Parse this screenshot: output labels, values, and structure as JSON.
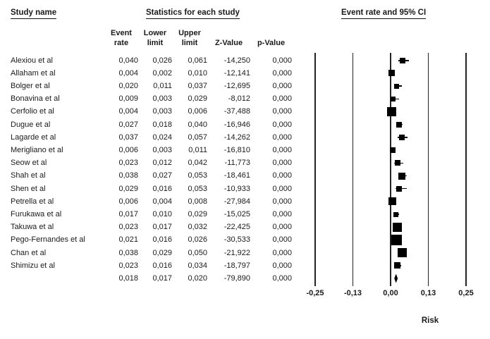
{
  "header": {
    "study_name": "Study name",
    "statistics": "Statistics for each study",
    "ci_title": "Event rate and 95% CI"
  },
  "columns": {
    "event_rate_line1": "Event",
    "event_rate_line2": "rate",
    "lower_line1": "Lower",
    "lower_line2": "limit",
    "upper_line1": "Upper",
    "upper_line2": "limit",
    "z_value": "Z-Value",
    "p_value": "p-Value"
  },
  "colors": {
    "text": "#1a1a1a",
    "marker": "#000000",
    "gridline": "#222222",
    "background": "#ffffff"
  },
  "chart_data": {
    "type": "forest",
    "title": "Event rate and 95% CI",
    "xlabel": "Risk",
    "decimal_separator": ",",
    "axis": {
      "xlim": [
        -0.25,
        0.25
      ],
      "tick_labels": [
        "-0,25",
        "-0,13",
        "0,00",
        "0,13",
        "0,25"
      ],
      "tick_values": [
        -0.25,
        -0.125,
        0,
        0.125,
        0.25
      ],
      "grid": "vertical-lines"
    },
    "legend_position": "none",
    "studies": [
      {
        "name": "Alexiou et al",
        "event_rate": "0,040",
        "lower_limit": "0,026",
        "upper_limit": "0,061",
        "z_value": "-14,250",
        "p_value": "0,000",
        "marker_size": 8
      },
      {
        "name": "Allaham et al",
        "event_rate": "0,004",
        "lower_limit": "0,002",
        "upper_limit": "0,010",
        "z_value": "-12,141",
        "p_value": "0,000",
        "marker_size": 9
      },
      {
        "name": "Bolger et al",
        "event_rate": "0,020",
        "lower_limit": "0,011",
        "upper_limit": "0,037",
        "z_value": "-12,695",
        "p_value": "0,000",
        "marker_size": 7
      },
      {
        "name": "Bonavina et al",
        "event_rate": "0,009",
        "lower_limit": "0,003",
        "upper_limit": "0,029",
        "z_value": "-8,012",
        "p_value": "0,000",
        "marker_size": 7
      },
      {
        "name": "Cerfolio et al",
        "event_rate": "0,004",
        "lower_limit": "0,003",
        "upper_limit": "0,006",
        "z_value": "-37,488",
        "p_value": "0,000",
        "marker_size": 13
      },
      {
        "name": "Dugue et al",
        "event_rate": "0,027",
        "lower_limit": "0,018",
        "upper_limit": "0,040",
        "z_value": "-16,946",
        "p_value": "0,000",
        "marker_size": 8
      },
      {
        "name": "Lagarde et al",
        "event_rate": "0,037",
        "lower_limit": "0,024",
        "upper_limit": "0,057",
        "z_value": "-14,262",
        "p_value": "0,000",
        "marker_size": 8
      },
      {
        "name": "Merigliano et al",
        "event_rate": "0,006",
        "lower_limit": "0,003",
        "upper_limit": "0,011",
        "z_value": "-16,810",
        "p_value": "0,000",
        "marker_size": 8
      },
      {
        "name": "Seow et al",
        "event_rate": "0,023",
        "lower_limit": "0,012",
        "upper_limit": "0,042",
        "z_value": "-11,773",
        "p_value": "0,000",
        "marker_size": 8
      },
      {
        "name": "Shah et al",
        "event_rate": "0,038",
        "lower_limit": "0,027",
        "upper_limit": "0,053",
        "z_value": "-18,461",
        "p_value": "0,000",
        "marker_size": 10
      },
      {
        "name": "Shen et al",
        "event_rate": "0,029",
        "lower_limit": "0,016",
        "upper_limit": "0,053",
        "z_value": "-10,933",
        "p_value": "0,000",
        "marker_size": 8
      },
      {
        "name": "Petrella et al",
        "event_rate": "0,006",
        "lower_limit": "0,004",
        "upper_limit": "0,008",
        "z_value": "-27,984",
        "p_value": "0,000",
        "marker_size": 11
      },
      {
        "name": "Furukawa et al",
        "event_rate": "0,017",
        "lower_limit": "0,010",
        "upper_limit": "0,029",
        "z_value": "-15,025",
        "p_value": "0,000",
        "marker_size": 7
      },
      {
        "name": "Takuwa et al",
        "event_rate": "0,023",
        "lower_limit": "0,017",
        "upper_limit": "0,032",
        "z_value": "-22,425",
        "p_value": "0,000",
        "marker_size": 13
      },
      {
        "name": "Pego-Fernandes et al",
        "event_rate": "0,021",
        "lower_limit": "0,016",
        "upper_limit": "0,026",
        "z_value": "-30,533",
        "p_value": "0,000",
        "marker_size": 15
      },
      {
        "name": "Chan et al",
        "event_rate": "0,038",
        "lower_limit": "0,029",
        "upper_limit": "0,050",
        "z_value": "-21,922",
        "p_value": "0,000",
        "marker_size": 13
      },
      {
        "name": "Shimizu et al",
        "event_rate": "0,023",
        "lower_limit": "0,016",
        "upper_limit": "0,034",
        "z_value": "-18,797",
        "p_value": "0,000",
        "marker_size": 9
      }
    ],
    "summary": {
      "name": "",
      "event_rate": "0,018",
      "lower_limit": "0,017",
      "upper_limit": "0,020",
      "z_value": "-79,890",
      "p_value": "0,000",
      "shape": "diamond"
    }
  }
}
